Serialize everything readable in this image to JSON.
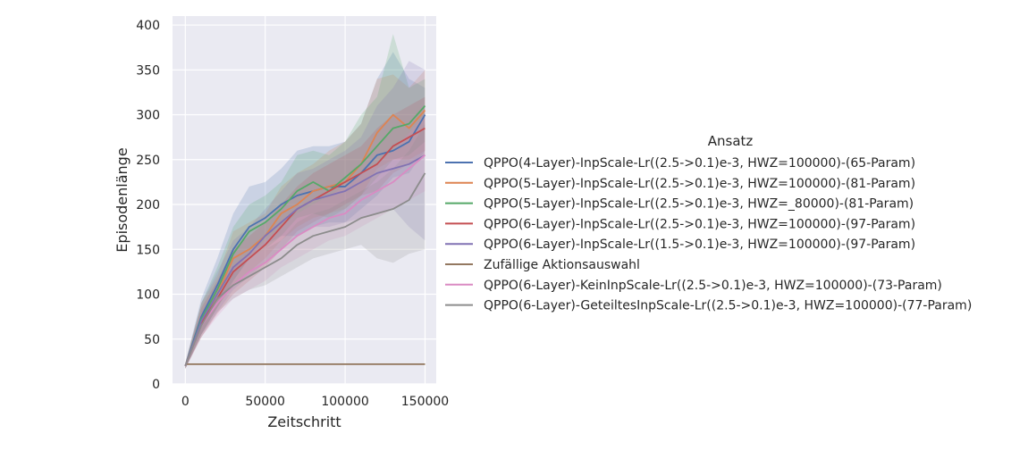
{
  "chart_data": {
    "type": "line",
    "title": "",
    "xlabel": "Zeitschritt",
    "ylabel": "Episodenlänge",
    "xlim": [
      -8000,
      157000
    ],
    "ylim": [
      0,
      410
    ],
    "x_ticks": [
      0,
      50000,
      100000,
      150000
    ],
    "y_ticks": [
      0,
      50,
      100,
      150,
      200,
      250,
      300,
      350,
      400
    ],
    "grid": true,
    "background": "#eaeaf2",
    "legend": {
      "title": "Ansatz",
      "placement": "outside-right"
    },
    "x": [
      0,
      10000,
      20000,
      30000,
      40000,
      50000,
      60000,
      70000,
      80000,
      90000,
      100000,
      110000,
      120000,
      130000,
      140000,
      150000
    ],
    "series": [
      {
        "name": "QPPO(4-Layer)-InpScale-Lr((2.5->0.1)e-3, HWZ=100000)-(65-Param)",
        "color": "#4c72b0",
        "values": [
          20,
          75,
          110,
          150,
          175,
          185,
          200,
          210,
          215,
          220,
          220,
          235,
          255,
          260,
          270,
          300
        ],
        "lower": [
          17,
          55,
          85,
          115,
          140,
          155,
          165,
          165,
          175,
          180,
          180,
          195,
          210,
          230,
          235,
          260
        ],
        "upper": [
          23,
          95,
          140,
          190,
          220,
          225,
          240,
          260,
          265,
          265,
          270,
          290,
          340,
          370,
          340,
          330
        ]
      },
      {
        "name": "QPPO(5-Layer)-InpScale-Lr((2.5->0.1)e-3, HWZ=100000)-(81-Param)",
        "color": "#dd8452",
        "values": [
          20,
          70,
          100,
          140,
          150,
          165,
          190,
          200,
          215,
          220,
          225,
          245,
          280,
          300,
          285,
          305
        ],
        "lower": [
          17,
          55,
          85,
          110,
          125,
          140,
          160,
          175,
          185,
          190,
          195,
          210,
          240,
          250,
          250,
          260
        ],
        "upper": [
          23,
          90,
          120,
          170,
          180,
          190,
          220,
          235,
          245,
          260,
          270,
          290,
          340,
          345,
          330,
          350
        ]
      },
      {
        "name": "QPPO(5-Layer)-InpScale-Lr((2.5->0.1)e-3, HWZ=_80000)-(81-Param)",
        "color": "#55a868",
        "values": [
          20,
          72,
          105,
          145,
          170,
          180,
          195,
          215,
          225,
          215,
          230,
          245,
          265,
          285,
          290,
          310
        ],
        "lower": [
          17,
          55,
          85,
          115,
          140,
          150,
          165,
          185,
          190,
          185,
          195,
          210,
          230,
          250,
          255,
          270
        ],
        "upper": [
          23,
          90,
          130,
          175,
          200,
          210,
          225,
          255,
          260,
          255,
          270,
          300,
          320,
          390,
          330,
          340
        ]
      },
      {
        "name": "QPPO(6-Layer)-InpScale-Lr((2.5->0.1)e-3, HWZ=100000)-(97-Param)",
        "color": "#c44e52",
        "values": [
          20,
          68,
          95,
          125,
          140,
          155,
          175,
          195,
          205,
          215,
          225,
          235,
          245,
          265,
          275,
          285
        ],
        "lower": [
          17,
          52,
          78,
          100,
          115,
          130,
          150,
          170,
          180,
          190,
          200,
          210,
          215,
          235,
          245,
          255
        ],
        "upper": [
          23,
          85,
          115,
          150,
          165,
          180,
          200,
          220,
          235,
          245,
          255,
          265,
          285,
          300,
          310,
          320
        ]
      },
      {
        "name": "QPPO(6-Layer)-InpScale-Lr((1.5->0.1)e-3, HWZ=100000)-(97-Param)",
        "color": "#8172b3",
        "values": [
          20,
          70,
          100,
          130,
          145,
          165,
          180,
          195,
          205,
          210,
          215,
          225,
          235,
          240,
          245,
          255
        ],
        "lower": [
          17,
          55,
          80,
          105,
          120,
          135,
          150,
          165,
          175,
          175,
          180,
          185,
          190,
          195,
          175,
          160
        ],
        "upper": [
          23,
          90,
          125,
          160,
          175,
          195,
          215,
          235,
          240,
          250,
          260,
          275,
          310,
          330,
          360,
          350
        ]
      },
      {
        "name": "Zufällige Aktionsauswahl",
        "color": "#937860",
        "values": [
          22,
          22,
          22,
          22,
          22,
          22,
          22,
          22,
          22,
          22,
          22,
          22,
          22,
          22,
          22,
          22
        ],
        "lower": [
          21,
          21,
          21,
          21,
          21,
          21,
          21,
          21,
          21,
          21,
          21,
          21,
          21,
          21,
          21,
          21
        ],
        "upper": [
          23,
          23,
          23,
          23,
          23,
          23,
          23,
          23,
          23,
          23,
          23,
          23,
          23,
          23,
          23,
          23
        ]
      },
      {
        "name": "QPPO(6-Layer)-KeinInpScale-Lr((2.5->0.1)e-3, HWZ=100000)-(73-Param)",
        "color": "#da8bc3",
        "values": [
          20,
          65,
          90,
          110,
          125,
          135,
          150,
          165,
          175,
          185,
          190,
          205,
          215,
          225,
          240,
          255
        ],
        "lower": [
          17,
          52,
          75,
          95,
          105,
          115,
          130,
          140,
          150,
          160,
          165,
          175,
          185,
          195,
          205,
          215
        ],
        "upper": [
          23,
          80,
          110,
          130,
          145,
          160,
          175,
          190,
          200,
          210,
          220,
          235,
          245,
          260,
          280,
          300
        ]
      },
      {
        "name": "QPPO(6-Layer)-GeteiltesInpScale-Lr((2.5->0.1)e-3, HWZ=100000)-(77-Param)",
        "color": "#8c8c8c",
        "values": [
          20,
          65,
          95,
          110,
          120,
          130,
          140,
          155,
          165,
          170,
          175,
          185,
          190,
          195,
          205,
          235
        ],
        "lower": [
          17,
          52,
          80,
          95,
          105,
          110,
          120,
          130,
          140,
          145,
          150,
          155,
          140,
          135,
          145,
          150
        ],
        "upper": [
          23,
          80,
          110,
          130,
          140,
          150,
          160,
          180,
          190,
          195,
          205,
          215,
          225,
          240,
          260,
          290
        ]
      }
    ]
  }
}
